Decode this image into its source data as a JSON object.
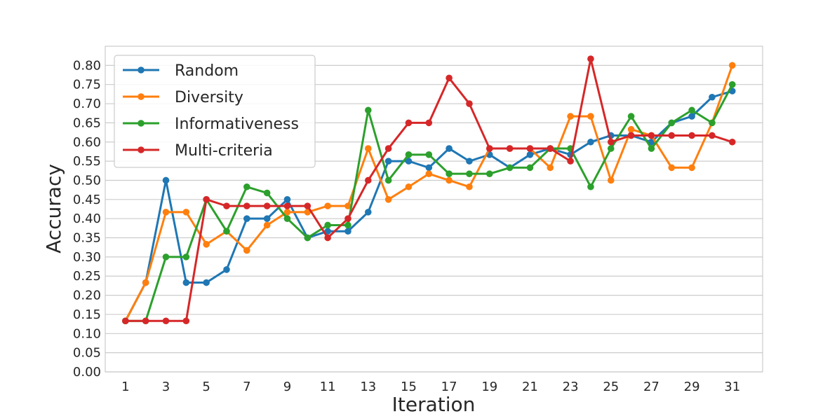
{
  "chart_data": {
    "type": "line",
    "title": "",
    "xlabel": "Iteration",
    "ylabel": "Accuracy",
    "x": [
      1,
      2,
      3,
      4,
      5,
      6,
      7,
      8,
      9,
      10,
      11,
      12,
      13,
      14,
      15,
      16,
      17,
      18,
      19,
      20,
      21,
      22,
      23,
      24,
      25,
      26,
      27,
      28,
      29,
      30,
      31
    ],
    "xticks": [
      1,
      3,
      5,
      7,
      9,
      11,
      13,
      15,
      17,
      19,
      21,
      23,
      25,
      27,
      29,
      31
    ],
    "xlim": [
      0.0,
      32.5
    ],
    "ylim": [
      0.0,
      0.85
    ],
    "yticks": [
      "0.00",
      "0.05",
      "0.10",
      "0.15",
      "0.20",
      "0.25",
      "0.30",
      "0.35",
      "0.40",
      "0.45",
      "0.50",
      "0.55",
      "0.60",
      "0.65",
      "0.70",
      "0.75",
      "0.80"
    ],
    "grid": true,
    "legend_position": "top-left",
    "series": [
      {
        "name": "Random",
        "color": "#1f77b4",
        "values": [
          0.133,
          0.233,
          0.5,
          0.233,
          0.233,
          0.267,
          0.4,
          0.4,
          0.45,
          0.35,
          0.367,
          0.367,
          0.417,
          0.55,
          0.55,
          0.533,
          0.583,
          0.55,
          0.567,
          0.533,
          0.567,
          0.583,
          0.567,
          0.6,
          0.617,
          0.617,
          0.6,
          0.65,
          0.667,
          0.717,
          0.733
        ]
      },
      {
        "name": "Diversity",
        "color": "#ff7f0e",
        "values": [
          0.133,
          0.233,
          0.417,
          0.417,
          0.333,
          0.367,
          0.317,
          0.383,
          0.417,
          0.417,
          0.433,
          0.433,
          0.583,
          0.45,
          0.483,
          0.517,
          0.5,
          0.483,
          0.583,
          0.583,
          0.583,
          0.533,
          0.667,
          0.667,
          0.5,
          0.633,
          0.617,
          0.533,
          0.533,
          0.65,
          0.8
        ]
      },
      {
        "name": "Informativeness",
        "color": "#2ca02c",
        "values": [
          0.133,
          0.133,
          0.3,
          0.3,
          0.45,
          0.367,
          0.483,
          0.467,
          0.4,
          0.35,
          0.383,
          0.383,
          0.683,
          0.5,
          0.567,
          0.567,
          0.517,
          0.517,
          0.517,
          0.533,
          0.533,
          0.583,
          0.583,
          0.483,
          0.583,
          0.667,
          0.583,
          0.65,
          0.683,
          0.65,
          0.75
        ]
      },
      {
        "name": "Multi-criteria",
        "color": "#d62728",
        "values": [
          0.133,
          0.133,
          0.133,
          0.133,
          0.45,
          0.433,
          0.433,
          0.433,
          0.433,
          0.433,
          0.35,
          0.4,
          0.5,
          0.583,
          0.65,
          0.65,
          0.767,
          0.7,
          0.583,
          0.583,
          0.583,
          0.583,
          0.55,
          0.817,
          0.6,
          0.617,
          0.617,
          0.617,
          0.617,
          0.617,
          0.6
        ]
      }
    ]
  }
}
